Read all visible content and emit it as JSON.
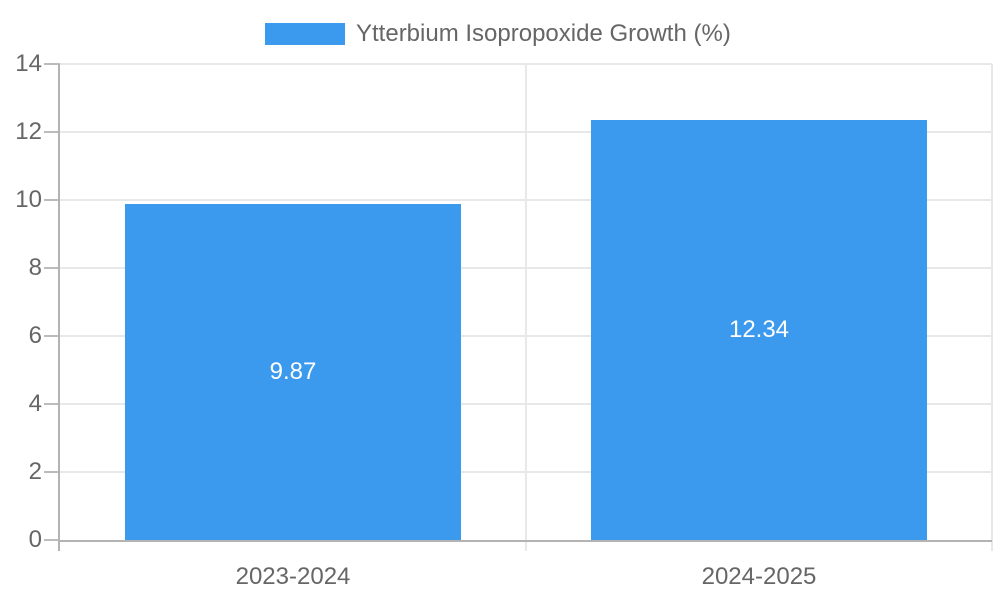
{
  "chart_data": {
    "type": "bar",
    "categories": [
      "2023-2024",
      "2024-2025"
    ],
    "values": [
      9.87,
      12.34
    ],
    "value_labels": [
      "9.87",
      "12.34"
    ],
    "legend": {
      "label": "Ytterbium Isopropoxide Growth (%)",
      "position": "top"
    },
    "title": "",
    "xlabel": "",
    "ylabel": "",
    "ylim": [
      0,
      14
    ],
    "yticks": [
      0,
      2,
      4,
      6,
      8,
      10,
      12,
      14
    ],
    "grid": true,
    "colors": {
      "bar": "#3b99ee",
      "value_label": "#ffffff",
      "axis_text": "#666666",
      "grid_line": "#e8e8e8",
      "axis_line": "#b3b3b3",
      "background": "#ffffff"
    }
  }
}
